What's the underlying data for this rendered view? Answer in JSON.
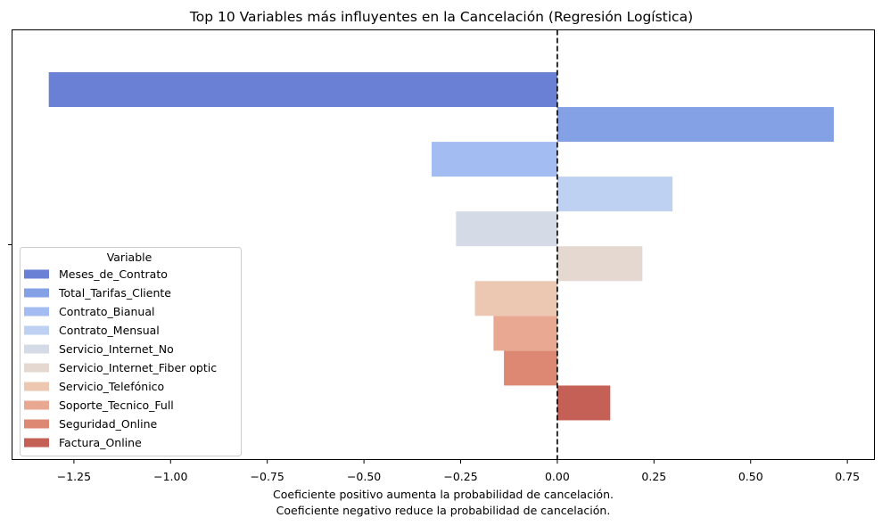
{
  "chart_data": {
    "type": "bar",
    "orientation": "horizontal",
    "title": "Top 10 Variables más influyentes en la Cancelación (Regresión Logística)",
    "xlabel_lines": [
      "Coeficiente positivo aumenta la probabilidad de cancelación.",
      "Coeficiente negativo reduce la probabilidad de cancelación."
    ],
    "ylabel": "",
    "xlim": [
      -1.41,
      0.82
    ],
    "xticks": [
      -1.25,
      -1.0,
      -0.75,
      -0.5,
      -0.25,
      0.0,
      0.25,
      0.5,
      0.75
    ],
    "xtick_labels": [
      "−1.25",
      "−1.00",
      "−0.75",
      "−0.50",
      "−0.25",
      "0.00",
      "0.25",
      "0.50",
      "0.75"
    ],
    "reference_line": {
      "x": 0.0,
      "style": "dashed",
      "color": "#000000"
    },
    "legend": {
      "title": "Variable",
      "placement": "lower-left"
    },
    "grid": false,
    "series": [
      {
        "name": "Meses_de_Contrato",
        "value": -1.315,
        "color": "#6a80d4"
      },
      {
        "name": "Total_Tarifas_Cliente",
        "value": 0.715,
        "color": "#85a1e6"
      },
      {
        "name": "Contrato_Bianual",
        "value": -0.325,
        "color": "#a3bcf2"
      },
      {
        "name": "Contrato_Mensual",
        "value": 0.298,
        "color": "#bfd1f2"
      },
      {
        "name": "Servicio_Internet_No",
        "value": -0.262,
        "color": "#d4dbe6"
      },
      {
        "name": "Servicio_Internet_Fiber optic",
        "value": 0.22,
        "color": "#e5d8d0"
      },
      {
        "name": "Servicio_Telefónico",
        "value": -0.213,
        "color": "#ecc7b1"
      },
      {
        "name": "Soporte_Tecnico_Full",
        "value": -0.165,
        "color": "#e8a891"
      },
      {
        "name": "Seguridad_Online",
        "value": -0.138,
        "color": "#dc8872"
      },
      {
        "name": "Factura_Online",
        "value": 0.137,
        "color": "#c56056"
      }
    ]
  }
}
